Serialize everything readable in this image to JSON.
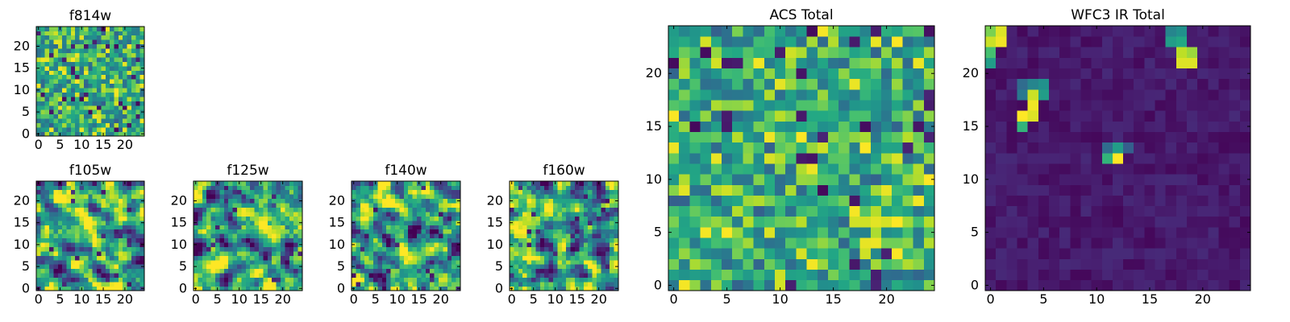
{
  "figure": {
    "palette": {
      "low": "#440154",
      "mid_low": "#31688e",
      "mid": "#21918c",
      "mid_high": "#5ec962",
      "high": "#fde725"
    }
  },
  "chart_data": [
    {
      "id": "f814w",
      "type": "heatmap",
      "title": "f814w",
      "grid_size": 25,
      "xlim": [
        0,
        24
      ],
      "ylim": [
        0,
        24
      ],
      "xticks": [
        0,
        5,
        10,
        15,
        20
      ],
      "yticks": [
        0,
        5,
        10,
        15,
        20
      ],
      "value_range": [
        0,
        1
      ],
      "texture": "noisy, high mean, scattered dark pixels",
      "seed": 814
    },
    {
      "id": "f105w",
      "type": "heatmap",
      "title": "f105w",
      "grid_size": 25,
      "xlim": [
        0,
        24
      ],
      "ylim": [
        0,
        24
      ],
      "xticks": [
        0,
        5,
        10,
        15,
        20
      ],
      "yticks": [
        0,
        5,
        10,
        15,
        20
      ],
      "value_range": [
        0,
        1
      ],
      "texture": "smooth, mottled",
      "seed": 105
    },
    {
      "id": "f125w",
      "type": "heatmap",
      "title": "f125w",
      "grid_size": 25,
      "xlim": [
        0,
        24
      ],
      "ylim": [
        0,
        24
      ],
      "xticks": [
        0,
        5,
        10,
        15,
        20
      ],
      "yticks": [
        0,
        5,
        10,
        15,
        20
      ],
      "value_range": [
        0,
        1
      ],
      "texture": "smooth, mottled",
      "seed": 125
    },
    {
      "id": "f140w",
      "type": "heatmap",
      "title": "f140w",
      "grid_size": 25,
      "xlim": [
        0,
        24
      ],
      "ylim": [
        0,
        24
      ],
      "xticks": [
        0,
        5,
        10,
        15,
        20
      ],
      "yticks": [
        0,
        5,
        10,
        15,
        20
      ],
      "value_range": [
        0,
        1
      ],
      "texture": "smooth, mottled",
      "seed": 140
    },
    {
      "id": "f160w",
      "type": "heatmap",
      "title": "f160w",
      "grid_size": 25,
      "xlim": [
        0,
        24
      ],
      "ylim": [
        0,
        24
      ],
      "xticks": [
        0,
        5,
        10,
        15,
        20
      ],
      "yticks": [
        0,
        5,
        10,
        15,
        20
      ],
      "value_range": [
        0,
        1
      ],
      "texture": "smooth, mottled",
      "seed": 160
    },
    {
      "id": "acs-total",
      "type": "heatmap",
      "title": "ACS Total",
      "grid_size": 25,
      "xlim": [
        0,
        24
      ],
      "ylim": [
        0,
        24
      ],
      "xticks": [
        0,
        5,
        10,
        15,
        20
      ],
      "yticks": [
        0,
        5,
        10,
        15,
        20
      ],
      "value_range": [
        0,
        1
      ],
      "texture": "noisy, high mean, scattered dark pixels",
      "seed": 77
    },
    {
      "id": "wfc3-ir-total",
      "type": "heatmap",
      "title": "WFC3 IR Total",
      "grid_size": 25,
      "xlim": [
        0,
        24
      ],
      "ylim": [
        0,
        24
      ],
      "xticks": [
        0,
        5,
        10,
        15,
        20
      ],
      "yticks": [
        0,
        5,
        10,
        15,
        20
      ],
      "value_range": [
        0,
        1
      ],
      "texture": "dark background with bright sources",
      "seed": 3,
      "bright_pixels": [
        {
          "x": 0,
          "y": 23,
          "value": 0.92
        },
        {
          "x": 1,
          "y": 23,
          "value": 0.98
        },
        {
          "x": 1,
          "y": 24,
          "value": 0.95
        },
        {
          "x": 0,
          "y": 24,
          "value": 0.8
        },
        {
          "x": 0,
          "y": 22,
          "value": 0.7
        },
        {
          "x": 0,
          "y": 21,
          "value": 0.55
        },
        {
          "x": 3,
          "y": 16,
          "value": 1.0
        },
        {
          "x": 4,
          "y": 16,
          "value": 0.95
        },
        {
          "x": 4,
          "y": 17,
          "value": 0.98
        },
        {
          "x": 4,
          "y": 18,
          "value": 0.92
        },
        {
          "x": 3,
          "y": 15,
          "value": 0.65
        },
        {
          "x": 5,
          "y": 18,
          "value": 0.55
        },
        {
          "x": 5,
          "y": 19,
          "value": 0.5
        },
        {
          "x": 3,
          "y": 18,
          "value": 0.4
        },
        {
          "x": 3,
          "y": 19,
          "value": 0.35
        },
        {
          "x": 4,
          "y": 19,
          "value": 0.45
        },
        {
          "x": 18,
          "y": 21,
          "value": 0.95
        },
        {
          "x": 19,
          "y": 21,
          "value": 0.95
        },
        {
          "x": 18,
          "y": 22,
          "value": 0.9
        },
        {
          "x": 19,
          "y": 22,
          "value": 0.85
        },
        {
          "x": 17,
          "y": 23,
          "value": 0.55
        },
        {
          "x": 18,
          "y": 23,
          "value": 0.6
        },
        {
          "x": 17,
          "y": 24,
          "value": 0.45
        },
        {
          "x": 18,
          "y": 24,
          "value": 0.5
        },
        {
          "x": 11,
          "y": 12,
          "value": 0.65
        },
        {
          "x": 12,
          "y": 12,
          "value": 1.0
        },
        {
          "x": 12,
          "y": 13,
          "value": 0.55
        },
        {
          "x": 11,
          "y": 13,
          "value": 0.35
        },
        {
          "x": 13,
          "y": 13,
          "value": 0.3
        }
      ]
    }
  ]
}
